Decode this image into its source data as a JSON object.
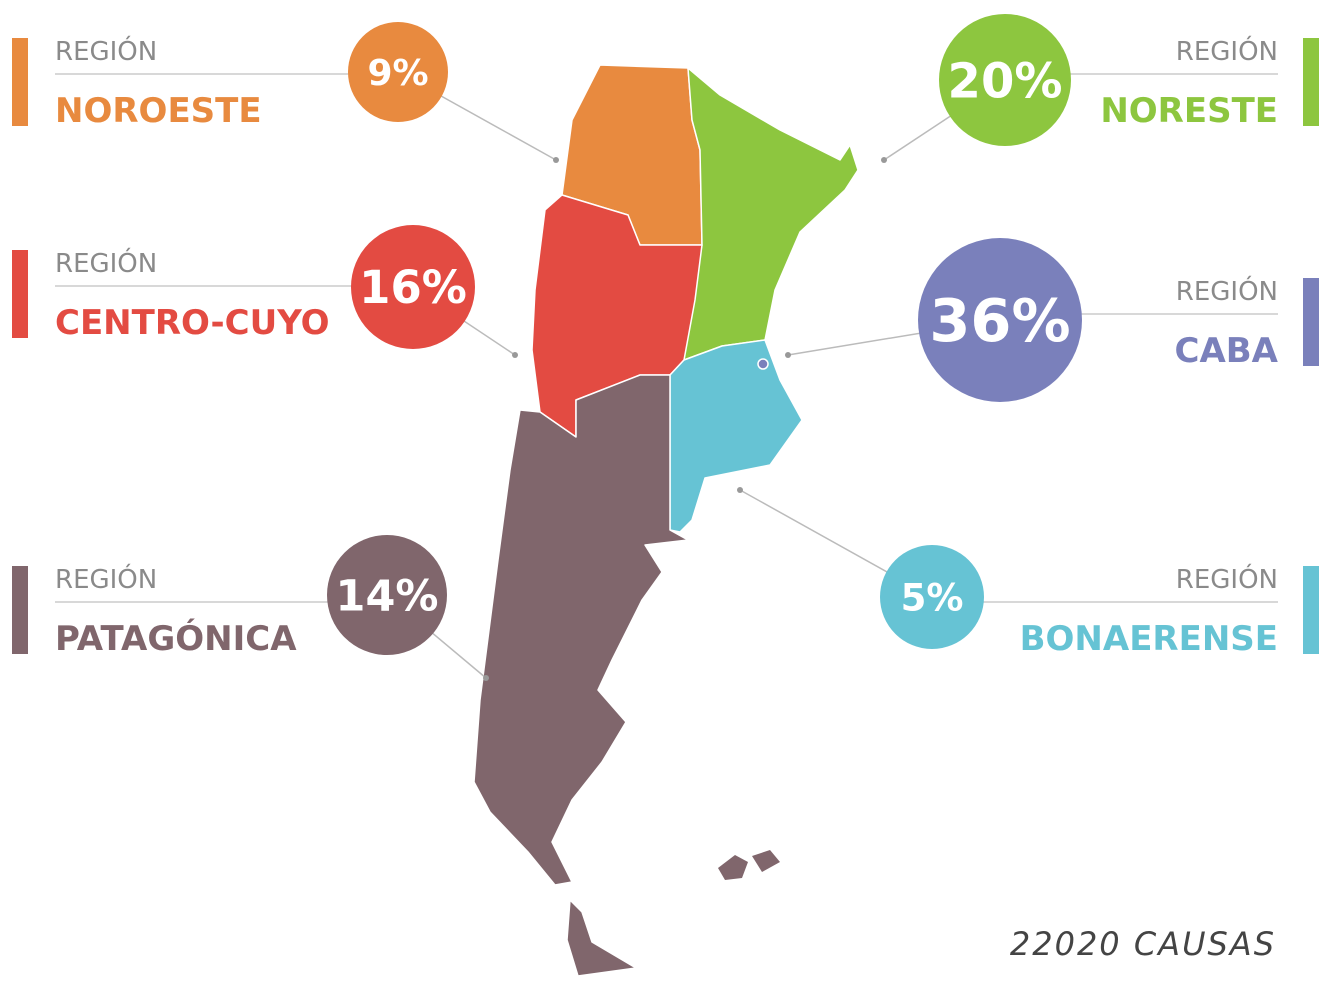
{
  "regions": [
    {
      "prefix": "REGIÓN",
      "name": "NOROESTE",
      "share": "9%"
    },
    {
      "prefix": "REGIÓN",
      "name": "NORESTE",
      "share": "20%"
    },
    {
      "prefix": "REGIÓN",
      "name": "CENTRO-CUYO",
      "share": "16%"
    },
    {
      "prefix": "REGIÓN",
      "name": "CABA",
      "share": "36%"
    },
    {
      "prefix": "REGIÓN",
      "name": "PATAGÓNICA",
      "share": "14%"
    },
    {
      "prefix": "REGIÓN",
      "name": "BONAERENSE",
      "share": "5%"
    }
  ],
  "footer": "22020 CAUSAS"
}
